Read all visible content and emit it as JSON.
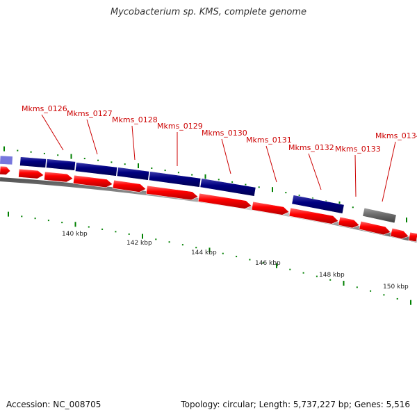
{
  "title": "Mycobacterium sp. KMS, complete genome",
  "footer": {
    "accession": "Accession: NC_008705",
    "summary": "Topology: circular; Length: 5,737,227 bp; Genes: 5,516"
  },
  "colors": {
    "forward_gene": "#ff0000",
    "reverse_gene": "#000080",
    "highlight_gene": "#7777dd",
    "other_gene": "#707070",
    "gene_label": "#cc0000",
    "tick": "#008000",
    "backbone": "#888888"
  },
  "scale_labels": [
    "140 kbp",
    "142 kbp",
    "144 kbp",
    "146 kbp",
    "148 kbp",
    "150 kbp"
  ],
  "gene_labels": [
    "Mkms_0126",
    "Mkms_0127",
    "Mkms_0128",
    "Mkms_0129",
    "Mkms_0130",
    "Mkms_0131",
    "Mkms_0132",
    "Mkms_0133",
    "Mkms_0134"
  ]
}
